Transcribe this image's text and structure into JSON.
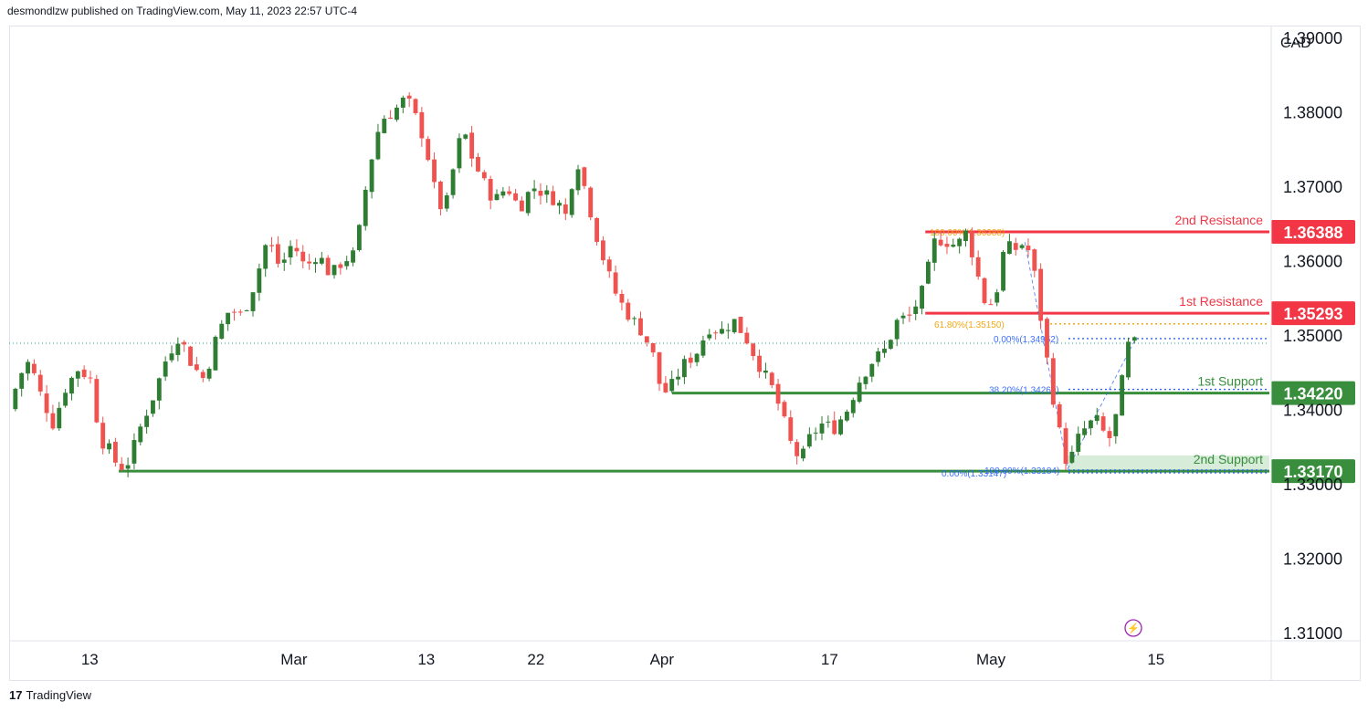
{
  "header": {
    "attribution": "desmondlzw published on TradingView.com, May 11, 2023 22:57 UTC-4"
  },
  "footer": {
    "brand": "TradingView",
    "logo_text": "17"
  },
  "colors": {
    "resistance": "#f23645",
    "support": "#388e3c",
    "candle_up": "#26a69a",
    "candle_up_chart": "#2e7d32",
    "candle_down": "#ef5350",
    "fib_blue": "#2962ff",
    "fib_orange": "#f0a000"
  },
  "chart_data": {
    "type": "candlestick",
    "currency": "CAD",
    "ylim": [
      1.309,
      1.3915
    ],
    "y_ticks": [
      "1.39000",
      "1.38000",
      "1.37000",
      "1.36000",
      "1.35000",
      "1.34000",
      "1.33000",
      "1.32000",
      "1.31000"
    ],
    "y_tick_values": [
      1.39,
      1.38,
      1.37,
      1.36,
      1.35,
      1.34,
      1.33,
      1.32,
      1.31
    ],
    "x_labels": [
      {
        "label": "13",
        "t": 0.064
      },
      {
        "label": "Mar",
        "t": 0.226
      },
      {
        "label": "13",
        "t": 0.331
      },
      {
        "label": "22",
        "t": 0.418
      },
      {
        "label": "Apr",
        "t": 0.518
      },
      {
        "label": "17",
        "t": 0.651
      },
      {
        "label": "May",
        "t": 0.779
      },
      {
        "label": "15",
        "t": 0.91
      }
    ],
    "last_price": 1.3489,
    "levels": [
      {
        "name": "2nd Resistance",
        "value": 1.36388,
        "value_label": "1.36388",
        "kind": "resistance",
        "t_start": 0.727
      },
      {
        "name": "1st Resistance",
        "value": 1.35293,
        "value_label": "1.35293",
        "kind": "resistance",
        "t_start": 0.727
      },
      {
        "name": "1st Support",
        "value": 1.3422,
        "value_label": "1.34220",
        "kind": "support",
        "t_start": 0.526
      },
      {
        "name": "2nd Support",
        "value": 1.3317,
        "value_label": "1.33170",
        "kind": "support",
        "t_start": 0.087
      }
    ],
    "fib_labels": [
      {
        "text": "100.00%(1.36388)",
        "value": 1.36388,
        "color": "orange"
      },
      {
        "text": "61.80%(1.35150)",
        "value": 1.3515,
        "color": "orange"
      },
      {
        "text": "0.00%(1.34952)",
        "value": 1.34952,
        "color": "blue"
      },
      {
        "text": "38.20%(1.34269)",
        "value": 1.34269,
        "color": "blue"
      },
      {
        "text": "100.00%(1.33184)",
        "value": 1.33184,
        "color": "blue"
      },
      {
        "text": "0.00%(1.33147)",
        "value": 1.33147,
        "color": "blue"
      }
    ],
    "support_zone": [
      1.3317,
      1.3338
    ],
    "path": [
      [
        0.0,
        1.34
      ],
      [
        0.008,
        1.3445
      ],
      [
        0.016,
        1.3465
      ],
      [
        0.025,
        1.342
      ],
      [
        0.035,
        1.338
      ],
      [
        0.045,
        1.343
      ],
      [
        0.055,
        1.3455
      ],
      [
        0.065,
        1.344
      ],
      [
        0.072,
        1.336
      ],
      [
        0.08,
        1.3345
      ],
      [
        0.087,
        1.332
      ],
      [
        0.095,
        1.333
      ],
      [
        0.105,
        1.338
      ],
      [
        0.115,
        1.342
      ],
      [
        0.125,
        1.347
      ],
      [
        0.135,
        1.35
      ],
      [
        0.145,
        1.346
      ],
      [
        0.155,
        1.344
      ],
      [
        0.165,
        1.35
      ],
      [
        0.175,
        1.3535
      ],
      [
        0.185,
        1.3525
      ],
      [
        0.195,
        1.357
      ],
      [
        0.205,
        1.363
      ],
      [
        0.215,
        1.359
      ],
      [
        0.225,
        1.3625
      ],
      [
        0.235,
        1.359
      ],
      [
        0.245,
        1.361
      ],
      [
        0.255,
        1.358
      ],
      [
        0.265,
        1.36
      ],
      [
        0.275,
        1.361
      ],
      [
        0.285,
        1.372
      ],
      [
        0.295,
        1.379
      ],
      [
        0.305,
        1.38
      ],
      [
        0.315,
        1.382
      ],
      [
        0.322,
        1.3795
      ],
      [
        0.33,
        1.376
      ],
      [
        0.337,
        1.37
      ],
      [
        0.345,
        1.366
      ],
      [
        0.352,
        1.372
      ],
      [
        0.36,
        1.378
      ],
      [
        0.367,
        1.374
      ],
      [
        0.375,
        1.371
      ],
      [
        0.385,
        1.368
      ],
      [
        0.395,
        1.37
      ],
      [
        0.405,
        1.367
      ],
      [
        0.415,
        1.37
      ],
      [
        0.425,
        1.369
      ],
      [
        0.435,
        1.368
      ],
      [
        0.442,
        1.366
      ],
      [
        0.45,
        1.374
      ],
      [
        0.458,
        1.369
      ],
      [
        0.465,
        1.364
      ],
      [
        0.472,
        1.36
      ],
      [
        0.48,
        1.356
      ],
      [
        0.49,
        1.353
      ],
      [
        0.5,
        1.351
      ],
      [
        0.51,
        1.348
      ],
      [
        0.518,
        1.342
      ],
      [
        0.525,
        1.343
      ],
      [
        0.535,
        1.346
      ],
      [
        0.545,
        1.3475
      ],
      [
        0.555,
        1.351
      ],
      [
        0.565,
        1.3505
      ],
      [
        0.575,
        1.352
      ],
      [
        0.585,
        1.3495
      ],
      [
        0.595,
        1.346
      ],
      [
        0.605,
        1.343
      ],
      [
        0.612,
        1.34
      ],
      [
        0.62,
        1.3355
      ],
      [
        0.628,
        1.333
      ],
      [
        0.636,
        1.3365
      ],
      [
        0.645,
        1.338
      ],
      [
        0.655,
        1.3375
      ],
      [
        0.665,
        1.34
      ],
      [
        0.675,
        1.344
      ],
      [
        0.685,
        1.3465
      ],
      [
        0.695,
        1.348
      ],
      [
        0.705,
        1.352
      ],
      [
        0.715,
        1.3525
      ],
      [
        0.725,
        1.356
      ],
      [
        0.735,
        1.363
      ],
      [
        0.745,
        1.3625
      ],
      [
        0.752,
        1.362
      ],
      [
        0.76,
        1.364
      ],
      [
        0.767,
        1.359
      ],
      [
        0.775,
        1.354
      ],
      [
        0.782,
        1.3545
      ],
      [
        0.79,
        1.362
      ],
      [
        0.798,
        1.3615
      ],
      [
        0.806,
        1.3625
      ],
      [
        0.812,
        1.36
      ],
      [
        0.818,
        1.353
      ],
      [
        0.825,
        1.345
      ],
      [
        0.832,
        1.338
      ],
      [
        0.84,
        1.3322
      ],
      [
        0.848,
        1.336
      ],
      [
        0.856,
        1.338
      ],
      [
        0.864,
        1.3385
      ],
      [
        0.872,
        1.3355
      ],
      [
        0.88,
        1.34
      ],
      [
        0.887,
        1.3485
      ],
      [
        0.893,
        1.3489
      ]
    ],
    "scale_symbol": "⚡"
  }
}
